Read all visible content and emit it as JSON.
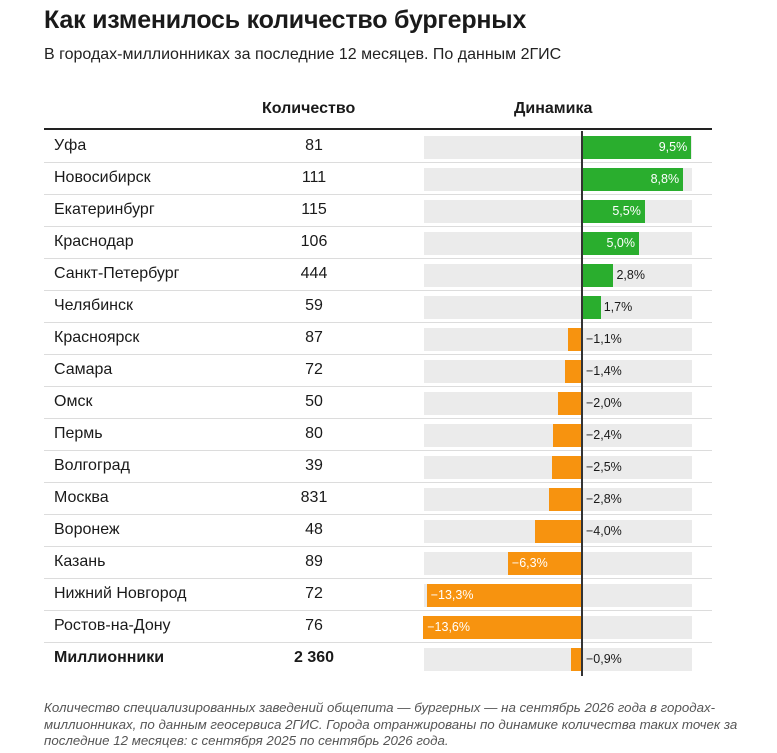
{
  "title": "Как изменилось количество бургерных",
  "subtitle": "В городах-миллионниках за последние 12 месяцев. По данным 2ГИС",
  "columns": {
    "count": "Количество",
    "dynamics": "Динамика"
  },
  "colors": {
    "positive": "#2aae2e",
    "negative": "#f7930f",
    "track": "#ebebeb"
  },
  "chart_data": {
    "type": "bar",
    "orientation": "horizontal",
    "xlim": [
      -13.6,
      9.5
    ],
    "unit": "%",
    "rows": [
      {
        "city": "Уфа",
        "count": "81",
        "change": 9.5,
        "label": "9,5%"
      },
      {
        "city": "Новосибирск",
        "count": "111",
        "change": 8.8,
        "label": "8,8%"
      },
      {
        "city": "Екатеринбург",
        "count": "115",
        "change": 5.5,
        "label": "5,5%"
      },
      {
        "city": "Краснодар",
        "count": "106",
        "change": 5.0,
        "label": "5,0%"
      },
      {
        "city": "Санкт-Петербург",
        "count": "444",
        "change": 2.8,
        "label": "2,8%"
      },
      {
        "city": "Челябинск",
        "count": "59",
        "change": 1.7,
        "label": "1,7%"
      },
      {
        "city": "Красноярск",
        "count": "87",
        "change": -1.1,
        "label": "−1,1%"
      },
      {
        "city": "Самара",
        "count": "72",
        "change": -1.4,
        "label": "−1,4%"
      },
      {
        "city": "Омск",
        "count": "50",
        "change": -2.0,
        "label": "−2,0%"
      },
      {
        "city": "Пермь",
        "count": "80",
        "change": -2.4,
        "label": "−2,4%"
      },
      {
        "city": "Волгоград",
        "count": "39",
        "change": -2.5,
        "label": "−2,5%"
      },
      {
        "city": "Москва",
        "count": "831",
        "change": -2.8,
        "label": "−2,8%"
      },
      {
        "city": "Воронеж",
        "count": "48",
        "change": -4.0,
        "label": "−4,0%"
      },
      {
        "city": "Казань",
        "count": "89",
        "change": -6.3,
        "label": "−6,3%"
      },
      {
        "city": "Нижний Новгород",
        "count": "72",
        "change": -13.3,
        "label": "−13,3%"
      },
      {
        "city": "Ростов-на-Дону",
        "count": "76",
        "change": -13.6,
        "label": "−13,6%"
      }
    ],
    "total": {
      "city": "Миллионники",
      "count": "2 360",
      "change": -0.9,
      "label": "−0,9%"
    }
  },
  "note": "Количество специализированных заведений общепита — бургерных — на сентябрь 2026 года в городах-миллионниках, по данным геосервиса 2ГИС. Города отранжированы по динамике количества таких точек за последние 12 месяцев: с сентября 2025 по сентябрь 2026 года."
}
